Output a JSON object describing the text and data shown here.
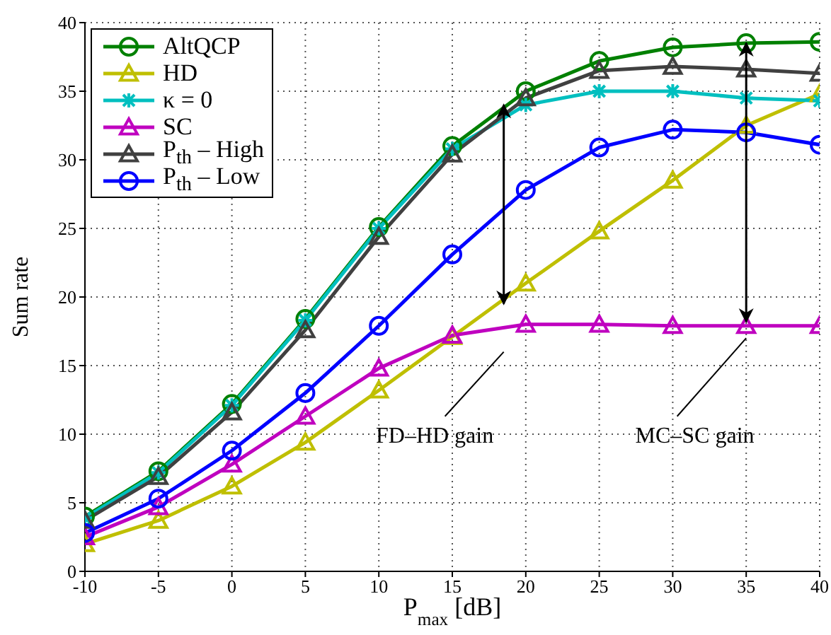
{
  "chart_data": {
    "type": "line",
    "xlabel": "P$_{max}$ [dB]",
    "ylabel": "Sum rate",
    "x": [
      -10,
      -5,
      0,
      5,
      10,
      15,
      20,
      25,
      30,
      35,
      40
    ],
    "series": [
      {
        "name": "AltQCP",
        "color": "#008000",
        "marker": "circle",
        "values": [
          4.0,
          7.3,
          12.2,
          18.4,
          25.1,
          31.0,
          35.0,
          37.2,
          38.2,
          38.5,
          38.6
        ]
      },
      {
        "name": "HD",
        "color": "#bfbf00",
        "marker": "triangle",
        "values": [
          2.0,
          3.7,
          6.2,
          9.4,
          13.2,
          17.1,
          21.0,
          24.8,
          28.5,
          32.5,
          34.8
        ]
      },
      {
        "name": "κ = 0",
        "color": "#00bfbf",
        "marker": "cross",
        "values": [
          3.9,
          7.2,
          12.1,
          18.3,
          25.0,
          30.8,
          34.0,
          35.0,
          35.0,
          34.5,
          34.3
        ]
      },
      {
        "name": "SC",
        "color": "#bf00bf",
        "marker": "triangle",
        "values": [
          2.5,
          4.7,
          7.8,
          11.3,
          14.8,
          17.2,
          18.0,
          18.0,
          17.9,
          17.9,
          17.9
        ]
      },
      {
        "name": "P$_{th}$ – High",
        "color": "#404040",
        "marker": "triangle",
        "values": [
          3.7,
          6.9,
          11.6,
          17.6,
          24.4,
          30.4,
          34.5,
          36.5,
          36.8,
          36.6,
          36.3
        ]
      },
      {
        "name": "P$_{th}$ – Low",
        "color": "#0000ff",
        "marker": "circle",
        "values": [
          2.8,
          5.3,
          8.8,
          13.0,
          17.9,
          23.1,
          27.8,
          30.9,
          32.2,
          32.0,
          31.1
        ]
      }
    ],
    "annotations": [
      "FD–HD gain",
      {
        "text": "MC–SC gain",
        "x": 35,
        "y": 17
      }
    ],
    "xlim": [
      -10,
      40
    ],
    "xticks": [
      -10,
      -5,
      0,
      5,
      10,
      15,
      20,
      25,
      30,
      35,
      40
    ],
    "ylim": [
      0,
      40
    ],
    "yticks": [
      0,
      5,
      10,
      15,
      20,
      25,
      30,
      35,
      40
    ],
    "grid": true,
    "legend": "top left",
    "line_style": "solid"
  }
}
